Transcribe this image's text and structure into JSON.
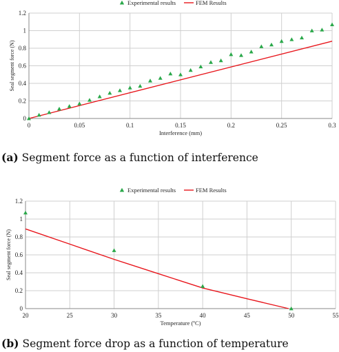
{
  "figures": [
    {
      "caption_letter": "(a)",
      "caption_text": "Segment force as a function of interference"
    },
    {
      "caption_letter": "(b)",
      "caption_text": "Segment force drop as a function of temperature"
    }
  ],
  "colors": {
    "experimental": "#2aa84a",
    "fem": "#e8151b",
    "grid": "#cfcfcf"
  },
  "chart_data": [
    {
      "type": "scatter",
      "xlabel": "Interference (mm)",
      "ylabel": "Seal segment force (N)",
      "xlim": [
        0,
        0.3
      ],
      "ylim": [
        0,
        1.2
      ],
      "xticks": [
        0,
        0.05,
        0.1,
        0.15,
        0.2,
        0.25,
        0.3
      ],
      "xtick_labels": [
        "0",
        "0.05",
        "0.1",
        "0.15",
        "0.2",
        "0.25",
        "0.3"
      ],
      "yticks": [
        0,
        0.2,
        0.4,
        0.6,
        0.8,
        1,
        1.2
      ],
      "ytick_labels": [
        "0",
        "0.2",
        "0.4",
        "0.6",
        "0.8",
        "1",
        "1.2"
      ],
      "grid": true,
      "legend_position": "top",
      "series": [
        {
          "name": "Experimental results",
          "marker": "triangle",
          "x": [
            0,
            0.01,
            0.02,
            0.03,
            0.04,
            0.05,
            0.06,
            0.07,
            0.08,
            0.09,
            0.1,
            0.11,
            0.12,
            0.13,
            0.14,
            0.15,
            0.16,
            0.17,
            0.18,
            0.19,
            0.2,
            0.21,
            0.22,
            0.23,
            0.24,
            0.25,
            0.26,
            0.27,
            0.28,
            0.29,
            0.3
          ],
          "y": [
            0.0,
            0.04,
            0.07,
            0.11,
            0.14,
            0.17,
            0.21,
            0.25,
            0.29,
            0.32,
            0.35,
            0.37,
            0.43,
            0.46,
            0.51,
            0.5,
            0.55,
            0.59,
            0.64,
            0.66,
            0.73,
            0.72,
            0.76,
            0.82,
            0.84,
            0.88,
            0.9,
            0.92,
            1.0,
            1.01,
            1.07
          ]
        },
        {
          "name": "FEM Results",
          "marker": "line",
          "x": [
            0,
            0.3
          ],
          "y": [
            0,
            0.88
          ]
        }
      ]
    },
    {
      "type": "scatter",
      "xlabel": "Temperature (ºC)",
      "ylabel": "Seal segment force (N)",
      "xlim": [
        20,
        55
      ],
      "ylim": [
        0,
        1.2
      ],
      "xticks": [
        20,
        25,
        30,
        35,
        40,
        45,
        50,
        55
      ],
      "xtick_labels": [
        "20",
        "25",
        "30",
        "35",
        "40",
        "45",
        "50",
        "55"
      ],
      "yticks": [
        0,
        0.2,
        0.4,
        0.6,
        0.8,
        1,
        1.2
      ],
      "ytick_labels": [
        "0",
        "0.2",
        "0.4",
        "0.6",
        "0.8",
        "1",
        "1.2"
      ],
      "grid": true,
      "legend_position": "top",
      "series": [
        {
          "name": "Experimental results",
          "marker": "triangle",
          "x": [
            20,
            30,
            40,
            50
          ],
          "y": [
            1.07,
            0.65,
            0.25,
            0.0
          ]
        },
        {
          "name": "FEM Results",
          "marker": "line",
          "x": [
            20,
            25,
            30,
            35,
            40,
            45,
            49.7
          ],
          "y": [
            0.89,
            0.72,
            0.55,
            0.39,
            0.23,
            0.11,
            0.0
          ]
        }
      ]
    }
  ]
}
